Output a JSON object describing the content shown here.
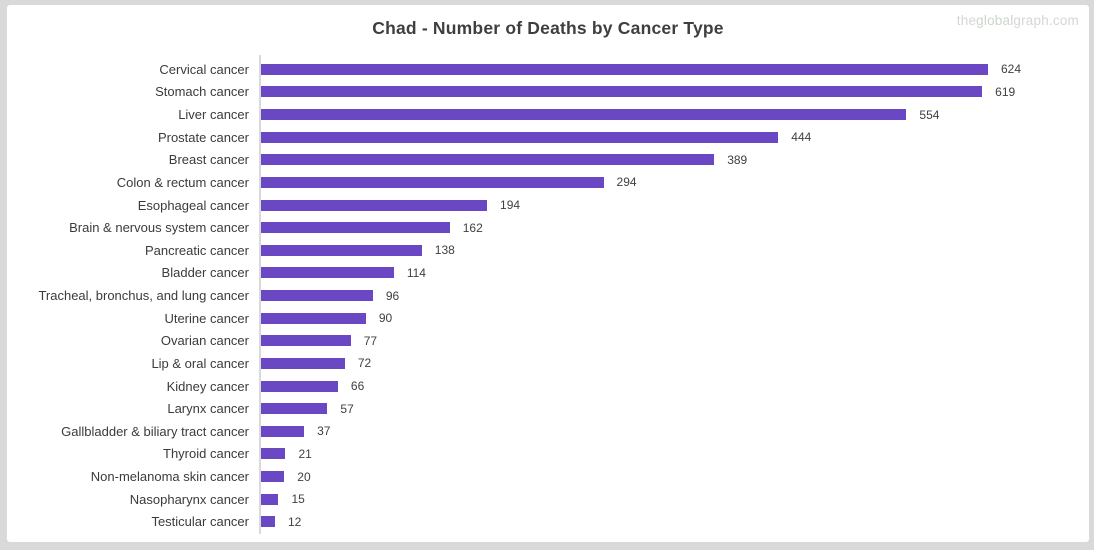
{
  "watermark": {
    "prefix": "the",
    "middle": "global",
    "suffix": "graph.com"
  },
  "colors": {
    "bar": "#6a48c3",
    "title_text": "#3f3f3f",
    "label_text": "#3b3b3b",
    "value_text": "#404040",
    "frame": "#d9d9d9",
    "axis_line": "#d9d9d9",
    "watermark_gray": "#d6d6d6",
    "watermark_green": "#ccd6cc"
  },
  "chart_data": {
    "type": "bar",
    "orientation": "horizontal",
    "title": "Chad - Number of Deaths by Cancer Type",
    "xlabel": "",
    "ylabel": "",
    "xlim": [
      0,
      709
    ],
    "grid": false,
    "legend": false,
    "value_labels_shown": true,
    "categories": [
      "Cervical cancer",
      "Stomach cancer",
      "Liver cancer",
      "Prostate cancer",
      "Breast cancer",
      "Colon & rectum cancer",
      "Esophageal cancer",
      "Brain & nervous system cancer",
      "Pancreatic cancer",
      "Bladder cancer",
      "Tracheal, bronchus, and lung cancer",
      "Uterine cancer",
      "Ovarian cancer",
      "Lip & oral cancer",
      "Kidney cancer",
      "Larynx cancer",
      "Gallbladder & biliary tract cancer",
      "Thyroid cancer",
      "Non-melanoma skin cancer",
      "Nasopharynx cancer",
      "Testicular cancer"
    ],
    "values": [
      624,
      619,
      554,
      444,
      389,
      294,
      194,
      162,
      138,
      114,
      96,
      90,
      77,
      72,
      66,
      57,
      37,
      21,
      20,
      15,
      12
    ]
  }
}
